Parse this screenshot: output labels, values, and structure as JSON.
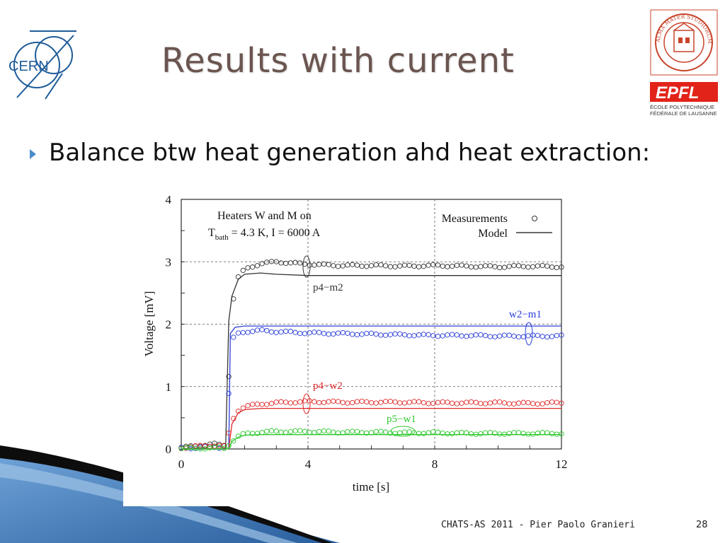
{
  "slide": {
    "title": "Results with current",
    "bullet": "Balance btw heat generation ahd heat extraction:",
    "footer": "CHATS-AS 2011 - Pier Paolo Granieri",
    "page_number": "28"
  },
  "logos": {
    "cern": "CERN",
    "unibo_text": "ALMA MATER STUDIORUM · A.D. 1088",
    "epfl": "EPFL",
    "epfl_line1": "ÉCOLE POLYTECHNIQUE",
    "epfl_line2": "FÉDÉRALE DE LAUSANNE"
  },
  "colors": {
    "title": "#6b5550",
    "bullet_arrow": "#4a8ec8",
    "unibo_red": "#c8442a",
    "epfl_red": "#e2231a",
    "cern_blue": "#1f5c99",
    "deco_blue": "#2f6fb3"
  },
  "chart_data": {
    "type": "line",
    "xlabel": "time [s]",
    "ylabel": "Voltage [mV]",
    "xlim": [
      0,
      12
    ],
    "ylim": [
      0,
      4
    ],
    "xticks": [
      0,
      4,
      8,
      12
    ],
    "yticks": [
      0,
      1,
      2,
      3,
      4
    ],
    "grid": "dashed at x=4,8 and y=1,2,3",
    "annotation_line1": "Heaters W and M on",
    "annotation_tbath_T": "T",
    "annotation_tbath_sub": "bath",
    "annotation_tbath_rest": " = 4.3 K, I = 6000 A",
    "legend": {
      "position": "top-right",
      "measurements": "Measurements",
      "model": "Model"
    },
    "series": [
      {
        "name": "p4−m2",
        "color": "#333333",
        "label_color": "#333333",
        "measured": {
          "x": [
            0,
            0.5,
            1.0,
            1.4,
            1.6,
            1.8,
            2.0,
            2.5,
            3.0,
            4.0,
            5.0,
            6.0,
            7.0,
            8.0,
            9.0,
            10.0,
            11.0,
            12.0
          ],
          "y": [
            0.02,
            0.05,
            0.08,
            0.05,
            2.3,
            2.75,
            2.88,
            2.97,
            3.0,
            2.96,
            2.94,
            2.94,
            2.93,
            2.94,
            2.93,
            2.92,
            2.93,
            2.92
          ]
        },
        "model": {
          "x": [
            0,
            1.4,
            1.5,
            1.6,
            1.8,
            2.0,
            2.5,
            3.0,
            4.0,
            12.0
          ],
          "y": [
            0,
            0,
            2.05,
            2.45,
            2.72,
            2.8,
            2.82,
            2.8,
            2.78,
            2.78
          ]
        }
      },
      {
        "name": "w2−m1",
        "color": "#2a3fd8",
        "label_color": "#2a3fd8",
        "measured": {
          "x": [
            0,
            0.5,
            1.0,
            1.4,
            1.6,
            1.8,
            2.0,
            2.5,
            3.0,
            4.0,
            5.0,
            6.0,
            7.0,
            8.0,
            9.0,
            10.0,
            11.0,
            12.0
          ],
          "y": [
            0.01,
            0.02,
            0.03,
            0.02,
            1.75,
            1.85,
            1.88,
            1.9,
            1.88,
            1.86,
            1.85,
            1.84,
            1.83,
            1.82,
            1.82,
            1.81,
            1.81,
            1.81
          ]
        },
        "model": {
          "x": [
            0,
            1.5,
            1.55,
            1.7,
            2.0,
            2.5,
            12.0
          ],
          "y": [
            0,
            0,
            1.85,
            1.95,
            1.97,
            1.97,
            1.97
          ]
        }
      },
      {
        "name": "p4−w2",
        "color": "#e02a2a",
        "label_color": "#e02a2a",
        "measured": {
          "x": [
            0,
            0.5,
            1.0,
            1.4,
            1.6,
            1.8,
            2.0,
            2.5,
            3.0,
            4.0,
            5.0,
            6.0,
            7.0,
            8.0,
            9.0,
            10.0,
            11.0,
            12.0
          ],
          "y": [
            0.02,
            0.04,
            0.06,
            0.04,
            0.45,
            0.62,
            0.68,
            0.72,
            0.74,
            0.76,
            0.75,
            0.75,
            0.75,
            0.74,
            0.74,
            0.74,
            0.73,
            0.74
          ]
        },
        "model": {
          "x": [
            0,
            1.5,
            1.6,
            1.8,
            2.0,
            2.5,
            3.0,
            12.0
          ],
          "y": [
            0,
            0,
            0.4,
            0.58,
            0.63,
            0.65,
            0.65,
            0.65
          ]
        }
      },
      {
        "name": "p5−w1",
        "color": "#2ec82e",
        "label_color": "#2ec82e",
        "measured": {
          "x": [
            0,
            0.5,
            1.0,
            1.4,
            1.6,
            1.8,
            2.0,
            2.5,
            3.0,
            4.0,
            5.0,
            6.0,
            7.0,
            8.0,
            9.0,
            10.0,
            11.0,
            12.0
          ],
          "y": [
            0.01,
            0.01,
            0.02,
            0.01,
            0.12,
            0.2,
            0.24,
            0.27,
            0.28,
            0.28,
            0.27,
            0.27,
            0.26,
            0.26,
            0.25,
            0.25,
            0.25,
            0.25
          ]
        },
        "model": {
          "x": [
            0,
            1.5,
            1.6,
            1.8,
            2.0,
            2.5,
            12.0
          ],
          "y": [
            0,
            0,
            0.12,
            0.19,
            0.22,
            0.23,
            0.23
          ]
        }
      }
    ]
  }
}
